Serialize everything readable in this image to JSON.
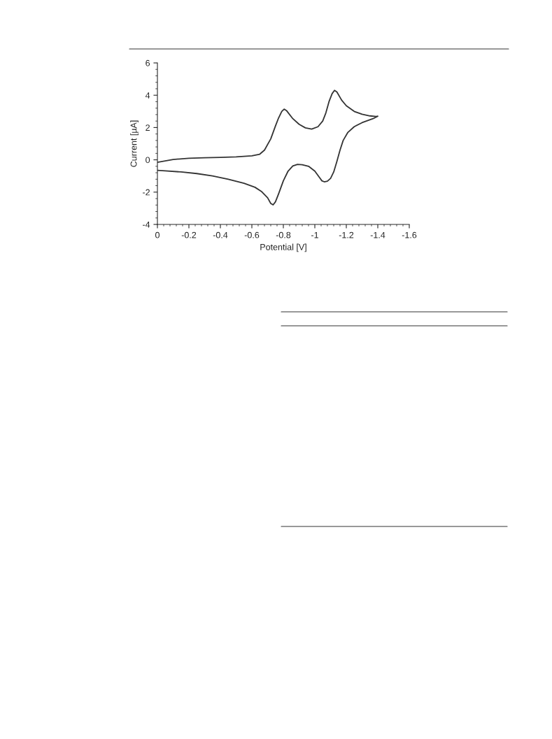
{
  "chart_data": {
    "type": "line",
    "xlabel": "Potential [V]",
    "ylabel": "Current [µA]",
    "series": [
      {
        "color": "#333333",
        "x": [
          0,
          -0.1,
          -0.2,
          -0.3,
          -0.4,
          -0.5,
          -0.6,
          -0.65,
          -0.68,
          -0.72,
          -0.75,
          -0.77,
          -0.79,
          -0.805,
          -0.82,
          -0.86,
          -0.9,
          -0.94,
          -0.98,
          -1.02,
          -1.05,
          -1.07,
          -1.09,
          -1.11,
          -1.125,
          -1.14,
          -1.17,
          -1.2,
          -1.25,
          -1.3,
          -1.35,
          -1.39,
          -1.4,
          -1.37,
          -1.3,
          -1.25,
          -1.21,
          -1.18,
          -1.16,
          -1.14,
          -1.12,
          -1.1,
          -1.08,
          -1.06,
          -1.045,
          -1.03,
          -1.0,
          -0.96,
          -0.92,
          -0.89,
          -0.86,
          -0.83,
          -0.8,
          -0.77,
          -0.75,
          -0.735,
          -0.72,
          -0.7,
          -0.66,
          -0.62,
          -0.55,
          -0.45,
          -0.35,
          -0.25,
          -0.15,
          -0.05,
          0
        ],
        "values": [
          -0.15,
          0.02,
          0.1,
          0.13,
          0.15,
          0.18,
          0.25,
          0.35,
          0.6,
          1.3,
          2.1,
          2.6,
          3.0,
          3.14,
          3.05,
          2.55,
          2.2,
          1.98,
          1.9,
          2.05,
          2.4,
          2.9,
          3.6,
          4.1,
          4.3,
          4.2,
          3.7,
          3.35,
          3.0,
          2.82,
          2.72,
          2.68,
          2.7,
          2.55,
          2.3,
          2.05,
          1.7,
          1.2,
          0.6,
          -0.1,
          -0.75,
          -1.15,
          -1.32,
          -1.36,
          -1.3,
          -1.1,
          -0.7,
          -0.4,
          -0.3,
          -0.28,
          -0.38,
          -0.7,
          -1.3,
          -2.1,
          -2.6,
          -2.79,
          -2.7,
          -2.35,
          -1.95,
          -1.7,
          -1.45,
          -1.2,
          -1.0,
          -0.85,
          -0.75,
          -0.68,
          -0.65
        ]
      }
    ],
    "xlim": [
      0,
      -1.6
    ],
    "ylim": [
      -4,
      6
    ],
    "xticks": [
      0,
      {
        "value": -0.2,
        "label": "-0.2"
      },
      {
        "value": -0.4,
        "label": "-0.4"
      },
      {
        "value": -0.6,
        "label": "-0.6"
      },
      {
        "value": -0.8,
        "label": "-0.8"
      },
      {
        "value": -1,
        "label": "-1"
      },
      {
        "value": -1.2,
        "label": "-1.2"
      },
      {
        "value": -1.4,
        "label": "-1.4"
      },
      {
        "value": -1.6,
        "label": "-1.6"
      }
    ],
    "yticks": [
      {
        "value": -4,
        "label": "-4"
      },
      {
        "value": -2,
        "label": "-2"
      },
      0,
      2,
      4,
      6
    ],
    "grid": false,
    "line_style": "solid",
    "marker": "none"
  }
}
